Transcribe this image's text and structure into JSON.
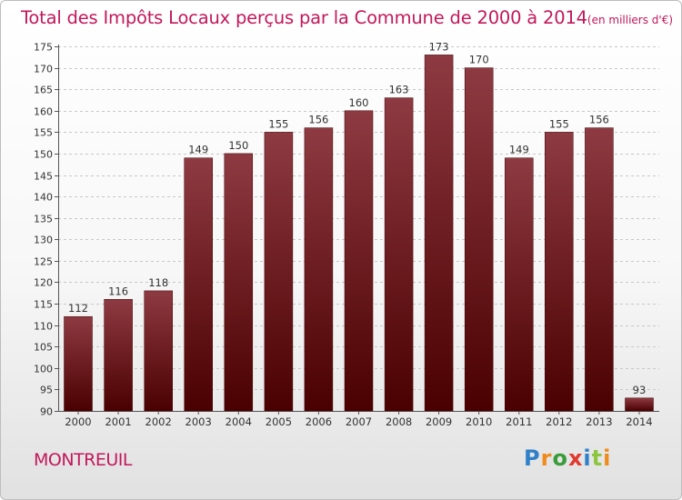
{
  "title": "Total des Impôts Locaux perçus par la Commune de 2000 à 2014",
  "title_unit": "(en milliers d'€)",
  "commune": "MONTREUIL",
  "brand": {
    "name": "Proxiti",
    "letters": [
      "P",
      "r",
      "o",
      "x",
      "i",
      "t",
      "i"
    ],
    "letter_colors": [
      "#2f80c8",
      "#f08a1c",
      "#3a9b3a",
      "#e03a2f",
      "#2f80c8",
      "#8cc63f",
      "#f08a1c"
    ]
  },
  "colors": {
    "bar_top": "#8e3a42",
    "bar_bottom": "#4a0000",
    "title": "#c2185b",
    "axis_text": "#333333",
    "gridline": "#c8c8c8"
  },
  "chart_data": {
    "type": "bar",
    "categories": [
      "2000",
      "2001",
      "2002",
      "2003",
      "2004",
      "2005",
      "2006",
      "2007",
      "2008",
      "2009",
      "2010",
      "2011",
      "2012",
      "2013",
      "2014"
    ],
    "values": [
      112,
      116,
      118,
      149,
      150,
      155,
      156,
      160,
      163,
      173,
      170,
      149,
      155,
      156,
      93
    ],
    "data_labels": [
      "112",
      "116",
      "118",
      "149",
      "150",
      "155",
      "156",
      "160",
      "163",
      "173",
      "170",
      "149",
      "155",
      "156",
      "93"
    ],
    "ylim": [
      90,
      175
    ],
    "yticks": [
      90,
      95,
      100,
      105,
      110,
      115,
      120,
      125,
      130,
      135,
      140,
      145,
      150,
      155,
      160,
      165,
      170,
      175
    ],
    "grid": true,
    "xlabel": "",
    "ylabel": ""
  }
}
